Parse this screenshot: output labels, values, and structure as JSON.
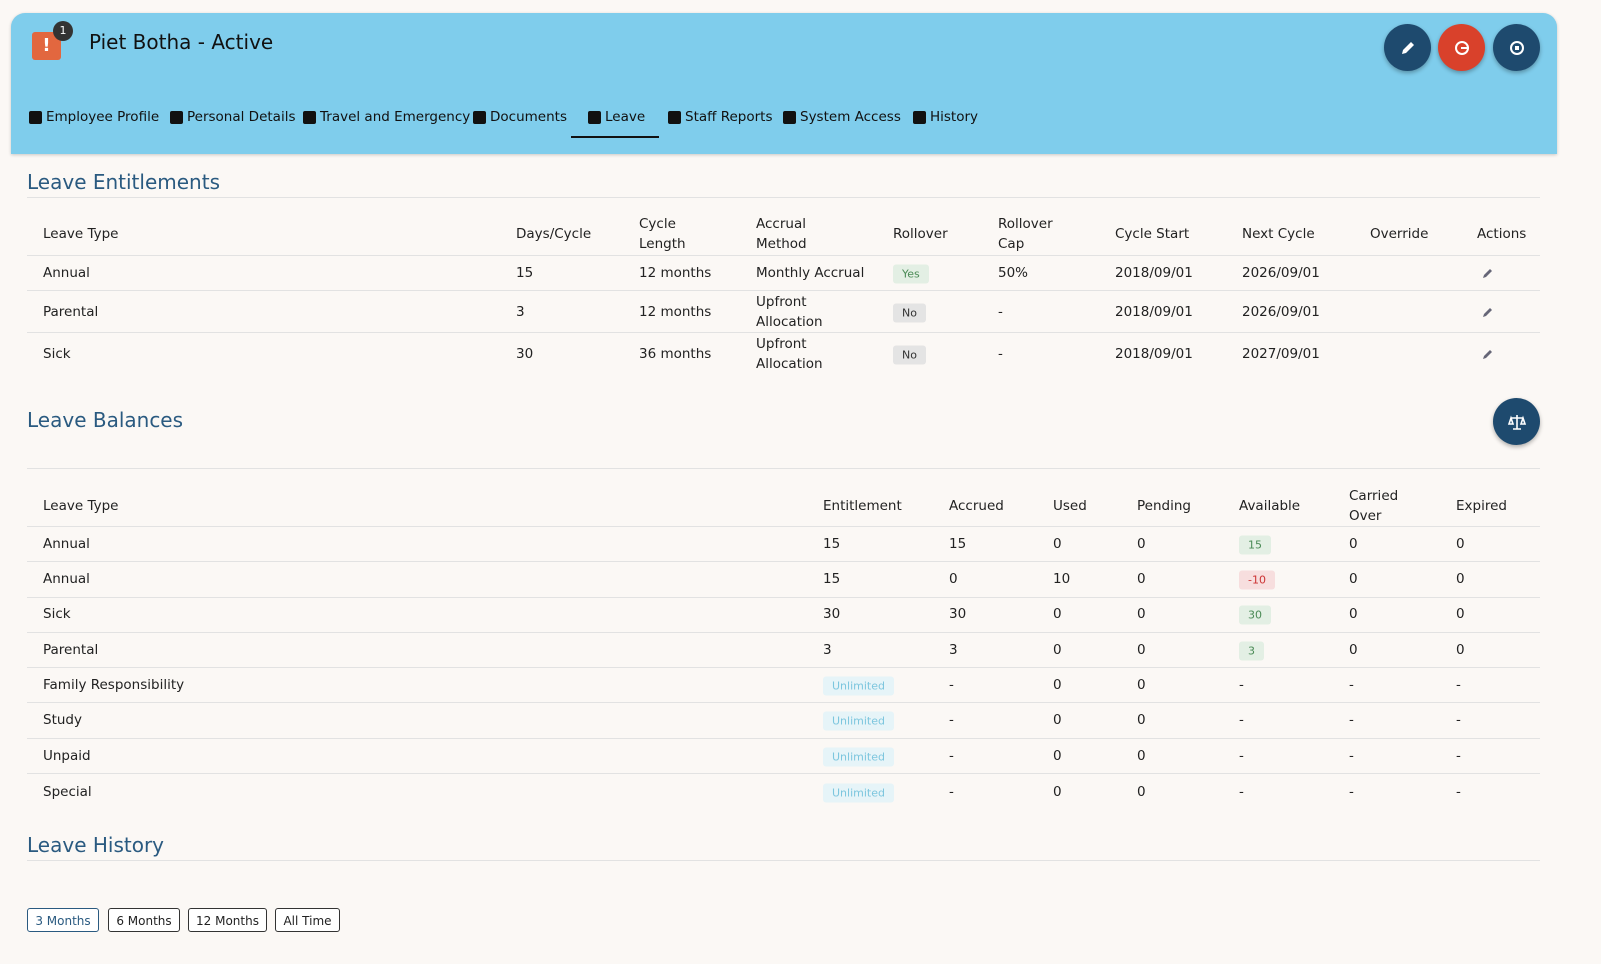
{
  "header": {
    "badge": "1",
    "title": "Piet Botha - Active"
  },
  "tabs": [
    "Employee Profile",
    "Personal Details",
    "Travel and Emergency",
    "Documents",
    "Leave",
    "Staff Reports",
    "System Access",
    "History"
  ],
  "entitlements": {
    "title": "Leave Entitlements",
    "columns": [
      "Leave Type",
      "Days/Cycle",
      "Cycle Length",
      "Accrual Method",
      "Rollover",
      "Rollover Cap",
      "Cycle Start",
      "Next Cycle",
      "Override",
      "Actions"
    ],
    "rows": [
      [
        "Annual",
        "15",
        "12 months",
        "Monthly Accrual",
        "Yes",
        "50%",
        "2018/09/01",
        "2026/09/01"
      ],
      [
        "Parental",
        "3",
        "12 months",
        "Upfront Allocation",
        "No",
        "-",
        "2018/09/01",
        "2026/09/01"
      ],
      [
        "Sick",
        "30",
        "36 months",
        "Upfront Allocation",
        "No",
        "-",
        "2018/09/01",
        "2027/09/01"
      ]
    ]
  },
  "balances": {
    "title": "Leave Balances",
    "columns": [
      "Leave Type",
      "Entitlement",
      "Accrued",
      "Used",
      "Pending",
      "Available",
      "Carried Over",
      "Expired"
    ],
    "rows": [
      [
        "Annual",
        "15",
        "15",
        "0",
        "0",
        "15",
        "0",
        "0"
      ],
      [
        "Annual",
        "15",
        "0",
        "10",
        "0",
        "-10",
        "0",
        "0"
      ],
      [
        "Sick",
        "30",
        "30",
        "0",
        "0",
        "30",
        "0",
        "0"
      ],
      [
        "Parental",
        "3",
        "3",
        "0",
        "0",
        "3",
        "0",
        "0"
      ],
      [
        "Family Responsibility",
        "Unlimited",
        "-",
        "0",
        "0",
        "-",
        "-",
        "-"
      ],
      [
        "Study",
        "Unlimited",
        "-",
        "0",
        "0",
        "-",
        "-",
        "-"
      ],
      [
        "Unpaid",
        "Unlimited",
        "-",
        "0",
        "0",
        "-",
        "-",
        "-"
      ],
      [
        "Special",
        "Unlimited",
        "-",
        "0",
        "0",
        "-",
        "-",
        "-"
      ]
    ]
  },
  "history": {
    "title": "Leave History",
    "filters": [
      "3 Months",
      "6 Months",
      "12 Months",
      "All Time"
    ]
  }
}
